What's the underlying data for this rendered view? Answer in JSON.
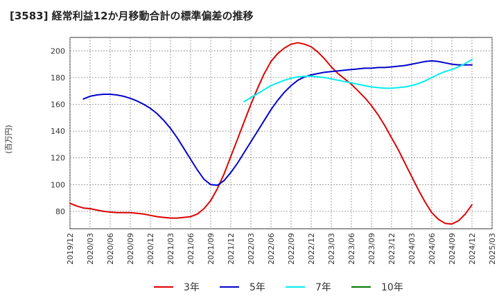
{
  "title": "[3583]  経常利益12か月移動合計の標準偏差の推移",
  "chart_data": {
    "type": "line",
    "title": "[3583]  経常利益12か月移動合計の標準偏差の推移",
    "ylabel": "(百万円)",
    "xlabel": "",
    "ylim": [
      67,
      210
    ],
    "yticks": [
      80,
      100,
      120,
      140,
      160,
      180,
      200
    ],
    "xlim": [
      "2019-12",
      "2025-03"
    ],
    "xticks": [
      "2019/12",
      "2020/03",
      "2020/06",
      "2020/09",
      "2020/12",
      "2021/03",
      "2021/06",
      "2021/09",
      "2021/12",
      "2022/03",
      "2022/06",
      "2022/09",
      "2022/12",
      "2023/03",
      "2023/06",
      "2023/09",
      "2023/12",
      "2024/03",
      "2024/06",
      "2024/09",
      "2024/12",
      "2025/03"
    ],
    "grid": true,
    "legend_position": "bottom",
    "series": [
      {
        "name": "3年",
        "color": "#dd0000",
        "points": [
          [
            "2019-12",
            86
          ],
          [
            "2020-01",
            84
          ],
          [
            "2020-02",
            82.5
          ],
          [
            "2020-03",
            82
          ],
          [
            "2020-04",
            81
          ],
          [
            "2020-05",
            80
          ],
          [
            "2020-06",
            79.5
          ],
          [
            "2020-07",
            79
          ],
          [
            "2020-08",
            79
          ],
          [
            "2020-09",
            79
          ],
          [
            "2020-10",
            78.5
          ],
          [
            "2020-11",
            78
          ],
          [
            "2020-12",
            77
          ],
          [
            "2021-01",
            76
          ],
          [
            "2021-02",
            75.5
          ],
          [
            "2021-03",
            75
          ],
          [
            "2021-04",
            75
          ],
          [
            "2021-05",
            75.5
          ],
          [
            "2021-06",
            76
          ],
          [
            "2021-07",
            78
          ],
          [
            "2021-08",
            82
          ],
          [
            "2021-09",
            88
          ],
          [
            "2021-10",
            97
          ],
          [
            "2021-11",
            108
          ],
          [
            "2021-12",
            121
          ],
          [
            "2022-01",
            134
          ],
          [
            "2022-02",
            147
          ],
          [
            "2022-03",
            160
          ],
          [
            "2022-04",
            172
          ],
          [
            "2022-05",
            183
          ],
          [
            "2022-06",
            192
          ],
          [
            "2022-07",
            198
          ],
          [
            "2022-08",
            202
          ],
          [
            "2022-09",
            205
          ],
          [
            "2022-10",
            206
          ],
          [
            "2022-11",
            205
          ],
          [
            "2022-12",
            203
          ],
          [
            "2023-01",
            199
          ],
          [
            "2023-02",
            194
          ],
          [
            "2023-03",
            188
          ],
          [
            "2023-04",
            183
          ],
          [
            "2023-05",
            179
          ],
          [
            "2023-06",
            175
          ],
          [
            "2023-07",
            170
          ],
          [
            "2023-08",
            165
          ],
          [
            "2023-09",
            159
          ],
          [
            "2023-10",
            152
          ],
          [
            "2023-11",
            144
          ],
          [
            "2023-12",
            135
          ],
          [
            "2024-01",
            126
          ],
          [
            "2024-02",
            116
          ],
          [
            "2024-03",
            106
          ],
          [
            "2024-04",
            96
          ],
          [
            "2024-05",
            87
          ],
          [
            "2024-06",
            79
          ],
          [
            "2024-07",
            74
          ],
          [
            "2024-08",
            71
          ],
          [
            "2024-09",
            70.5
          ],
          [
            "2024-10",
            73
          ],
          [
            "2024-11",
            78
          ],
          [
            "2024-12",
            85
          ]
        ]
      },
      {
        "name": "5年",
        "color": "#0000cc",
        "points": [
          [
            "2020-02",
            164
          ],
          [
            "2020-03",
            166
          ],
          [
            "2020-04",
            167
          ],
          [
            "2020-05",
            167.5
          ],
          [
            "2020-06",
            167.5
          ],
          [
            "2020-07",
            167
          ],
          [
            "2020-08",
            166
          ],
          [
            "2020-09",
            164.5
          ],
          [
            "2020-10",
            162.5
          ],
          [
            "2020-11",
            160
          ],
          [
            "2020-12",
            157
          ],
          [
            "2021-01",
            153
          ],
          [
            "2021-02",
            148
          ],
          [
            "2021-03",
            142
          ],
          [
            "2021-04",
            135
          ],
          [
            "2021-05",
            127
          ],
          [
            "2021-06",
            119
          ],
          [
            "2021-07",
            111
          ],
          [
            "2021-08",
            104
          ],
          [
            "2021-09",
            100
          ],
          [
            "2021-10",
            99.5
          ],
          [
            "2021-11",
            103
          ],
          [
            "2021-12",
            109
          ],
          [
            "2022-01",
            116
          ],
          [
            "2022-02",
            124
          ],
          [
            "2022-03",
            132
          ],
          [
            "2022-04",
            140
          ],
          [
            "2022-05",
            148
          ],
          [
            "2022-06",
            156
          ],
          [
            "2022-07",
            163
          ],
          [
            "2022-08",
            169
          ],
          [
            "2022-09",
            174
          ],
          [
            "2022-10",
            178
          ],
          [
            "2022-11",
            180.5
          ],
          [
            "2022-12",
            182
          ],
          [
            "2023-01",
            183
          ],
          [
            "2023-02",
            184
          ],
          [
            "2023-03",
            184.5
          ],
          [
            "2023-04",
            185
          ],
          [
            "2023-05",
            185.5
          ],
          [
            "2023-06",
            186
          ],
          [
            "2023-07",
            186.5
          ],
          [
            "2023-08",
            187
          ],
          [
            "2023-09",
            187
          ],
          [
            "2023-10",
            187.5
          ],
          [
            "2023-11",
            187.5
          ],
          [
            "2023-12",
            188
          ],
          [
            "2024-01",
            188.5
          ],
          [
            "2024-02",
            189
          ],
          [
            "2024-03",
            190
          ],
          [
            "2024-04",
            191
          ],
          [
            "2024-05",
            192
          ],
          [
            "2024-06",
            192.5
          ],
          [
            "2024-07",
            192
          ],
          [
            "2024-08",
            191
          ],
          [
            "2024-09",
            190
          ],
          [
            "2024-10",
            189.5
          ],
          [
            "2024-11",
            189.5
          ],
          [
            "2024-12",
            189.5
          ]
        ]
      },
      {
        "name": "7年",
        "color": "#00eeee",
        "points": [
          [
            "2022-02",
            162
          ],
          [
            "2022-03",
            165
          ],
          [
            "2022-04",
            168
          ],
          [
            "2022-05",
            171
          ],
          [
            "2022-06",
            174
          ],
          [
            "2022-07",
            176
          ],
          [
            "2022-08",
            178
          ],
          [
            "2022-09",
            179.5
          ],
          [
            "2022-10",
            180.5
          ],
          [
            "2022-11",
            181
          ],
          [
            "2022-12",
            181
          ],
          [
            "2023-01",
            180.5
          ],
          [
            "2023-02",
            180
          ],
          [
            "2023-03",
            179
          ],
          [
            "2023-04",
            178
          ],
          [
            "2023-05",
            177
          ],
          [
            "2023-06",
            176
          ],
          [
            "2023-07",
            175
          ],
          [
            "2023-08",
            174
          ],
          [
            "2023-09",
            173
          ],
          [
            "2023-10",
            172.5
          ],
          [
            "2023-11",
            172
          ],
          [
            "2023-12",
            172
          ],
          [
            "2024-01",
            172.5
          ],
          [
            "2024-02",
            173
          ],
          [
            "2024-03",
            174
          ],
          [
            "2024-04",
            175.5
          ],
          [
            "2024-05",
            177.5
          ],
          [
            "2024-06",
            180
          ],
          [
            "2024-07",
            182.5
          ],
          [
            "2024-08",
            184.5
          ],
          [
            "2024-09",
            186
          ],
          [
            "2024-10",
            188
          ],
          [
            "2024-11",
            190.5
          ],
          [
            "2024-12",
            193.5
          ]
        ]
      },
      {
        "name": "10年",
        "color": "#007700",
        "points": []
      }
    ]
  }
}
